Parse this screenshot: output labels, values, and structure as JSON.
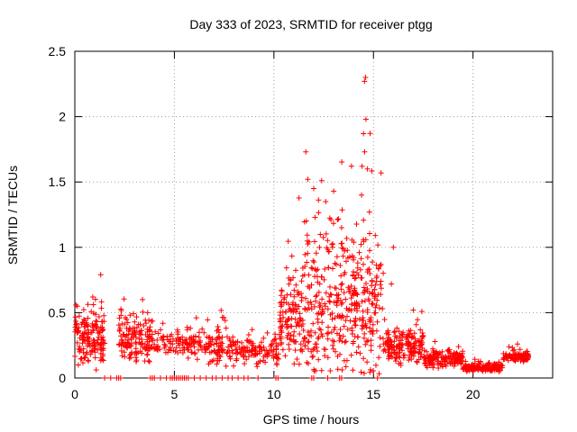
{
  "chart_data": {
    "type": "scatter",
    "title": "Day 333 of 2023, SRMTID for receiver ptgg",
    "xlabel": "GPS time / hours",
    "ylabel": "SRMTID / TECUs",
    "xlim": [
      0,
      24
    ],
    "ylim": [
      0,
      2.5
    ],
    "x_ticks": [
      0,
      5,
      10,
      15,
      20
    ],
    "x_tick_labels": [
      "0",
      "5",
      "10",
      "15",
      "20"
    ],
    "y_ticks": [
      0,
      0.5,
      1,
      1.5,
      2,
      2.5
    ],
    "y_tick_labels": [
      "0",
      "0.5",
      "1",
      "1.5",
      "2",
      "2.5"
    ],
    "grid": true,
    "marker": "+",
    "series_color": "#ff0000",
    "segments": [
      {
        "x0": 0.0,
        "x1": 1.5,
        "base": 0.32,
        "spread": 0.16,
        "count": 160
      },
      {
        "x0": 2.2,
        "x1": 3.8,
        "base": 0.3,
        "spread": 0.12,
        "count": 140
      },
      {
        "x0": 3.8,
        "x1": 6.5,
        "base": 0.27,
        "spread": 0.08,
        "count": 120
      },
      {
        "x0": 6.5,
        "x1": 8.0,
        "base": 0.24,
        "spread": 0.1,
        "count": 90
      },
      {
        "x0": 8.0,
        "x1": 10.3,
        "base": 0.2,
        "spread": 0.07,
        "count": 110
      },
      {
        "x0": 10.3,
        "x1": 11.5,
        "base": 0.45,
        "spread": 0.25,
        "count": 120
      },
      {
        "x0": 11.5,
        "x1": 13.8,
        "base": 0.6,
        "spread": 0.45,
        "count": 220
      },
      {
        "x0": 13.8,
        "x1": 15.5,
        "base": 0.55,
        "spread": 0.4,
        "count": 180
      },
      {
        "x0": 15.5,
        "x1": 17.5,
        "base": 0.25,
        "spread": 0.1,
        "count": 170
      },
      {
        "x0": 17.5,
        "x1": 19.5,
        "base": 0.15,
        "spread": 0.05,
        "count": 150
      },
      {
        "x0": 19.5,
        "x1": 21.5,
        "base": 0.08,
        "spread": 0.025,
        "count": 150
      },
      {
        "x0": 21.5,
        "x1": 22.8,
        "base": 0.16,
        "spread": 0.03,
        "count": 90
      }
    ],
    "peaks": [
      {
        "x": 0.9,
        "y": 0.62
      },
      {
        "x": 1.3,
        "y": 0.79
      },
      {
        "x": 3.4,
        "y": 0.6
      },
      {
        "x": 11.6,
        "y": 1.73
      },
      {
        "x": 11.7,
        "y": 1.52
      },
      {
        "x": 12.0,
        "y": 1.45
      },
      {
        "x": 12.4,
        "y": 1.51
      },
      {
        "x": 12.6,
        "y": 1.35
      },
      {
        "x": 13.0,
        "y": 1.43
      },
      {
        "x": 13.4,
        "y": 1.15
      },
      {
        "x": 14.4,
        "y": 1.4
      },
      {
        "x": 14.5,
        "y": 1.87
      },
      {
        "x": 14.6,
        "y": 2.3
      },
      {
        "x": 14.55,
        "y": 2.27
      },
      {
        "x": 14.62,
        "y": 1.98
      },
      {
        "x": 14.7,
        "y": 1.6
      },
      {
        "x": 14.8,
        "y": 1.27
      },
      {
        "x": 16.0,
        "y": 1.0
      },
      {
        "x": 15.9,
        "y": 0.72
      },
      {
        "x": 17.0,
        "y": 0.52
      }
    ],
    "zero_points_x": [
      1.5,
      1.8,
      2.1,
      2.2,
      2.3,
      3.8,
      3.9,
      4.0,
      4.3,
      4.6,
      4.8,
      4.9,
      5.0,
      5.1,
      5.2,
      5.3,
      5.4,
      5.5,
      5.6,
      5.7,
      6.0,
      6.3,
      6.6,
      6.9,
      7.1,
      7.4,
      7.7,
      7.9,
      8.2,
      8.5,
      8.7,
      9.2,
      10.1,
      10.2,
      11.9,
      12.0,
      12.7,
      13.3,
      13.4,
      15.2
    ]
  }
}
